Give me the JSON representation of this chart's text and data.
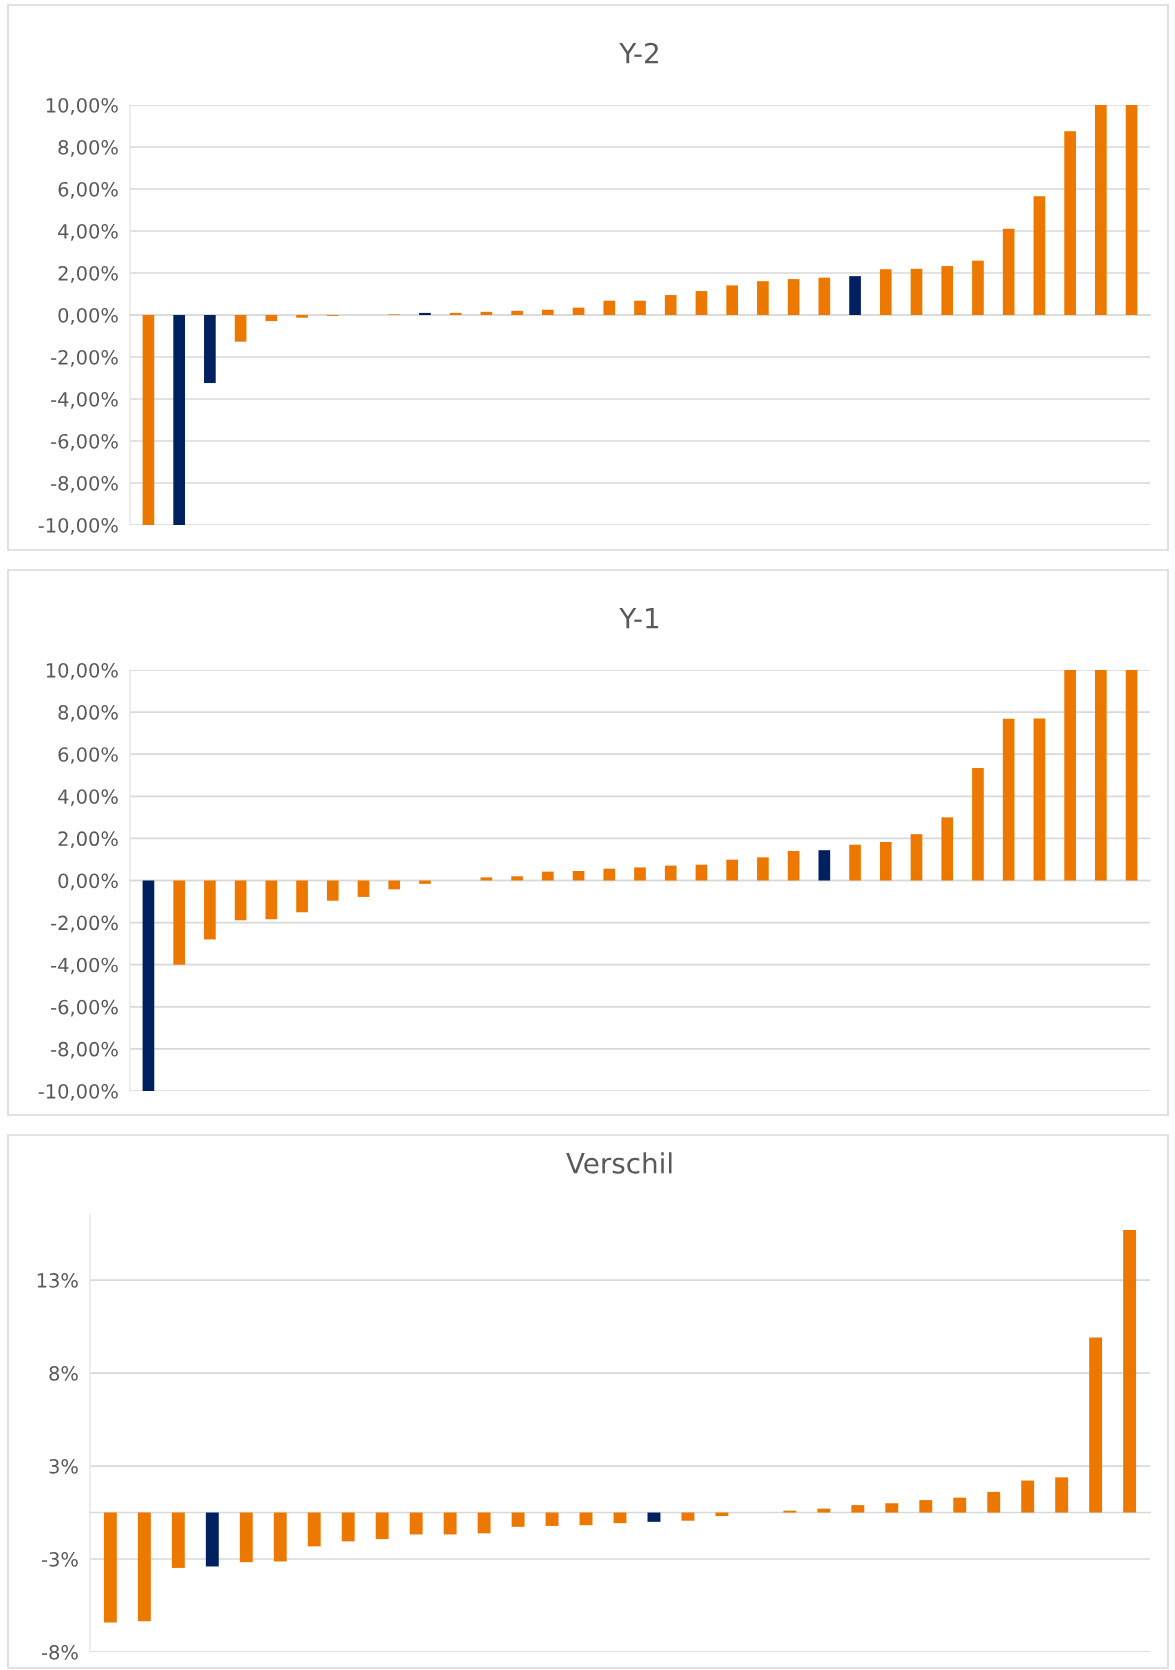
{
  "chart_data": [
    {
      "type": "bar",
      "title": "Y-2",
      "grid": "y",
      "categories": [
        null,
        null,
        null,
        null,
        null,
        null,
        null,
        null,
        null,
        null,
        null,
        null,
        null,
        null,
        null,
        null,
        null,
        null,
        null,
        null,
        null,
        null,
        null,
        null,
        null,
        null,
        null,
        null,
        null,
        null,
        null,
        null,
        null
      ],
      "values": [
        -10,
        -10,
        -3.24,
        -1.27,
        -0.29,
        -0.13,
        -0.04,
        0,
        0.03,
        0.1,
        0.1,
        0.15,
        0.2,
        0.25,
        0.35,
        0.68,
        0.68,
        0.95,
        1.14,
        1.41,
        1.61,
        1.71,
        1.78,
        1.85,
        2.18,
        2.2,
        2.33,
        2.59,
        4.11,
        5.65,
        8.75,
        10,
        10
      ],
      "colors": [
        "#ed7800",
        "#002060",
        "#002060",
        "#ed7800",
        "#ed7800",
        "#ed7800",
        "#ed7800",
        "#ed7800",
        "#ed7800",
        "#002060",
        "#ed7800",
        "#ed7800",
        "#ed7800",
        "#ed7800",
        "#ed7800",
        "#ed7800",
        "#ed7800",
        "#ed7800",
        "#ed7800",
        "#ed7800",
        "#ed7800",
        "#ed7800",
        "#ed7800",
        "#002060",
        "#ed7800",
        "#ed7800",
        "#ed7800",
        "#ed7800",
        "#ed7800",
        "#ed7800",
        "#ed7800",
        "#ed7800",
        "#ed7800"
      ],
      "ylim": [
        -10,
        10
      ],
      "yticks": [
        {
          "value": -10,
          "label": "-10,00%"
        },
        {
          "value": -8,
          "label": "-8,00%"
        },
        {
          "value": -6,
          "label": "-6,00%"
        },
        {
          "value": -4,
          "label": "-4,00%"
        },
        {
          "value": -2,
          "label": "-2,00%"
        },
        {
          "value": 0,
          "label": "0,00%"
        },
        {
          "value": 2,
          "label": "2,00%"
        },
        {
          "value": 4,
          "label": "4,00%"
        },
        {
          "value": 6,
          "label": "6,00%"
        },
        {
          "value": 8,
          "label": "8,00%"
        },
        {
          "value": 10,
          "label": "10,00%"
        }
      ]
    },
    {
      "type": "bar",
      "title": "Y-1",
      "grid": "y",
      "categories": [
        null,
        null,
        null,
        null,
        null,
        null,
        null,
        null,
        null,
        null,
        null,
        null,
        null,
        null,
        null,
        null,
        null,
        null,
        null,
        null,
        null,
        null,
        null,
        null,
        null,
        null,
        null,
        null,
        null,
        null,
        null,
        null,
        null
      ],
      "values": [
        -10,
        -4.0,
        -2.8,
        -1.89,
        -1.84,
        -1.51,
        -0.96,
        -0.78,
        -0.42,
        -0.16,
        0,
        0.15,
        0.2,
        0.42,
        0.45,
        0.56,
        0.62,
        0.71,
        0.75,
        0.99,
        1.1,
        1.4,
        1.44,
        1.7,
        1.83,
        2.2,
        3.0,
        5.35,
        7.68,
        7.7,
        10,
        10,
        10
      ],
      "colors": [
        "#002060",
        "#ed7800",
        "#ed7800",
        "#ed7800",
        "#ed7800",
        "#ed7800",
        "#ed7800",
        "#ed7800",
        "#ed7800",
        "#ed7800",
        "#ed7800",
        "#ed7800",
        "#ed7800",
        "#ed7800",
        "#ed7800",
        "#ed7800",
        "#ed7800",
        "#ed7800",
        "#ed7800",
        "#ed7800",
        "#ed7800",
        "#ed7800",
        "#002060",
        "#ed7800",
        "#ed7800",
        "#ed7800",
        "#ed7800",
        "#ed7800",
        "#ed7800",
        "#ed7800",
        "#ed7800",
        "#ed7800",
        "#ed7800"
      ],
      "ylim": [
        -10,
        10
      ],
      "yticks": [
        {
          "value": -10,
          "label": "-10,00%"
        },
        {
          "value": -8,
          "label": "-8,00%"
        },
        {
          "value": -6,
          "label": "-6,00%"
        },
        {
          "value": -4,
          "label": "-4,00%"
        },
        {
          "value": -2,
          "label": "-2,00%"
        },
        {
          "value": 0,
          "label": "0,00%"
        },
        {
          "value": 2,
          "label": "2,00%"
        },
        {
          "value": 4,
          "label": "4,00%"
        },
        {
          "value": 6,
          "label": "6,00%"
        },
        {
          "value": 8,
          "label": "8,00%"
        },
        {
          "value": 10,
          "label": "10,00%"
        }
      ]
    },
    {
      "type": "bar",
      "title": "Verschil",
      "grid": "y",
      "categories": [
        null,
        null,
        null,
        null,
        null,
        null,
        null,
        null,
        null,
        null,
        null,
        null,
        null,
        null,
        null,
        null,
        null,
        null,
        null,
        null,
        null,
        null,
        null,
        null,
        null,
        null,
        null,
        null,
        null,
        null,
        null
      ],
      "values": [
        -5.92,
        -5.84,
        -2.98,
        -2.9,
        -2.67,
        -2.63,
        -1.82,
        -1.55,
        -1.43,
        -1.18,
        -1.18,
        -1.12,
        -0.77,
        -0.72,
        -0.68,
        -0.57,
        -0.5,
        -0.44,
        -0.19,
        null,
        0.1,
        0.21,
        0.4,
        0.5,
        0.67,
        0.8,
        1.11,
        1.72,
        1.89,
        9.41,
        15.2
      ],
      "colors": [
        "#ed7800",
        "#ed7800",
        "#ed7800",
        "#002060",
        "#ed7800",
        "#ed7800",
        "#ed7800",
        "#ed7800",
        "#ed7800",
        "#ed7800",
        "#ed7800",
        "#ed7800",
        "#ed7800",
        "#ed7800",
        "#ed7800",
        "#ed7800",
        "#002060",
        "#ed7800",
        "#ed7800",
        "#ed7800",
        "#ed7800",
        "#ed7800",
        "#ed7800",
        "#ed7800",
        "#ed7800",
        "#ed7800",
        "#ed7800",
        "#ed7800",
        "#ed7800",
        "#ed7800",
        "#ed7800"
      ],
      "ylim": [
        -7.5,
        16
      ],
      "yticks": [
        {
          "value": -7.5,
          "label": "-8%"
        },
        {
          "value": -2.5,
          "label": "-3%"
        },
        {
          "value": 2.5,
          "label": "3%"
        },
        {
          "value": 7.5,
          "label": "8%"
        },
        {
          "value": 12.5,
          "label": "13%"
        }
      ]
    }
  ]
}
